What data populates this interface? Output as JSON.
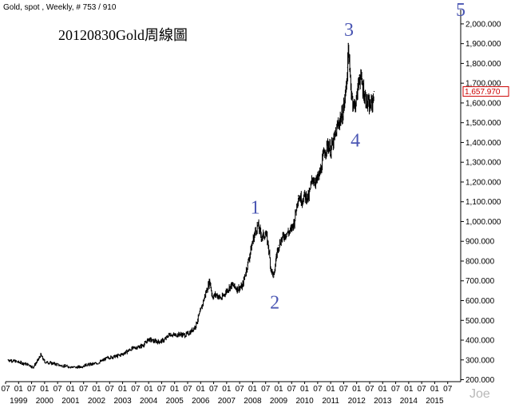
{
  "header": {
    "title": "Gold, spot , Weekly, # 753 / 910"
  },
  "annotation": {
    "title": "20120830Gold周線圖"
  },
  "signature": "Joe",
  "colors": {
    "price": "#000000",
    "wave_label": "#4a56b3",
    "last_price_box": "#cc0000",
    "background": "#ffffff"
  },
  "chart_data": {
    "type": "line",
    "title": "Gold, spot , Weekly, # 753 / 910",
    "xlabel": "",
    "ylabel": "",
    "grid": false,
    "legend": "none",
    "ylim": [
      190,
      2040
    ],
    "xlim": [
      1998.5,
      2016.0
    ],
    "y_ticks": [
      "200.000",
      "300.000",
      "400.000",
      "500.000",
      "600.000",
      "700.000",
      "800.000",
      "900.000",
      "1,000.000",
      "1,100.000",
      "1,200.000",
      "1,300.000",
      "1,400.000",
      "1,500.000",
      "1,600.000",
      "1,700.000",
      "1,800.000",
      "1,900.000",
      "2,000.000"
    ],
    "x_month_ticks": [
      {
        "x": 1998.5,
        "label": "07"
      },
      {
        "x": 1999.0,
        "label": "01"
      },
      {
        "x": 1999.5,
        "label": "07"
      },
      {
        "x": 2000.0,
        "label": "01"
      },
      {
        "x": 2000.5,
        "label": "07"
      },
      {
        "x": 2001.0,
        "label": "01"
      },
      {
        "x": 2001.5,
        "label": "07"
      },
      {
        "x": 2002.0,
        "label": "01"
      },
      {
        "x": 2002.5,
        "label": "07"
      },
      {
        "x": 2003.0,
        "label": "01"
      },
      {
        "x": 2003.5,
        "label": "07"
      },
      {
        "x": 2004.0,
        "label": "01"
      },
      {
        "x": 2004.5,
        "label": "07"
      },
      {
        "x": 2005.0,
        "label": "01"
      },
      {
        "x": 2005.5,
        "label": "07"
      },
      {
        "x": 2006.0,
        "label": "01"
      },
      {
        "x": 2006.5,
        "label": "07"
      },
      {
        "x": 2007.0,
        "label": "01"
      },
      {
        "x": 2007.5,
        "label": "07"
      },
      {
        "x": 2008.0,
        "label": "01"
      },
      {
        "x": 2008.5,
        "label": "07"
      },
      {
        "x": 2009.0,
        "label": "01"
      },
      {
        "x": 2009.5,
        "label": "07"
      },
      {
        "x": 2010.0,
        "label": "01"
      },
      {
        "x": 2010.5,
        "label": "07"
      },
      {
        "x": 2011.0,
        "label": "01"
      },
      {
        "x": 2011.5,
        "label": "07"
      },
      {
        "x": 2012.0,
        "label": "01"
      },
      {
        "x": 2012.5,
        "label": "07"
      },
      {
        "x": 2013.0,
        "label": "01"
      },
      {
        "x": 2013.5,
        "label": "07"
      },
      {
        "x": 2014.0,
        "label": "01"
      },
      {
        "x": 2014.5,
        "label": "07"
      },
      {
        "x": 2015.0,
        "label": "01"
      },
      {
        "x": 2015.5,
        "label": "07"
      }
    ],
    "x_year_labels": [
      {
        "x": 1999.0,
        "label": "1999"
      },
      {
        "x": 2000.0,
        "label": "2000"
      },
      {
        "x": 2001.0,
        "label": "2001"
      },
      {
        "x": 2002.0,
        "label": "2002"
      },
      {
        "x": 2003.0,
        "label": "2003"
      },
      {
        "x": 2004.0,
        "label": "2004"
      },
      {
        "x": 2005.0,
        "label": "2005"
      },
      {
        "x": 2006.0,
        "label": "2006"
      },
      {
        "x": 2007.0,
        "label": "2007"
      },
      {
        "x": 2008.0,
        "label": "2008"
      },
      {
        "x": 2009.0,
        "label": "2009"
      },
      {
        "x": 2010.0,
        "label": "2010"
      },
      {
        "x": 2011.0,
        "label": "2011"
      },
      {
        "x": 2012.0,
        "label": "2012"
      },
      {
        "x": 2013.0,
        "label": "2013"
      },
      {
        "x": 2014.0,
        "label": "2014"
      },
      {
        "x": 2015.0,
        "label": "2015"
      }
    ],
    "last_value": 1657.97,
    "last_value_label": "1,657.970",
    "series": [
      {
        "x": [
          1998.6,
          1998.8,
          1999.0,
          1999.2,
          1999.4,
          1999.55,
          1999.75,
          1999.85,
          2000.0,
          2000.2,
          2000.4,
          2000.6,
          2000.8,
          2001.0,
          2001.2,
          2001.4,
          2001.6,
          2001.8,
          2002.0,
          2002.2,
          2002.4,
          2002.6,
          2002.8,
          2003.0,
          2003.2,
          2003.4,
          2003.6,
          2003.8,
          2004.0,
          2004.2,
          2004.4,
          2004.6,
          2004.8,
          2005.0,
          2005.2,
          2005.4,
          2005.6,
          2005.8,
          2006.0,
          2006.2,
          2006.35,
          2006.45,
          2006.6,
          2006.8,
          2007.0,
          2007.2,
          2007.4,
          2007.6,
          2007.8,
          2008.0,
          2008.1,
          2008.2,
          2008.35,
          2008.5,
          2008.6,
          2008.7,
          2008.82,
          2008.9,
          2009.0,
          2009.15,
          2009.3,
          2009.45,
          2009.6,
          2009.75,
          2009.9,
          2010.0,
          2010.15,
          2010.3,
          2010.45,
          2010.6,
          2010.75,
          2010.9,
          2011.0,
          2011.15,
          2011.3,
          2011.45,
          2011.55,
          2011.65,
          2011.68,
          2011.72,
          2011.8,
          2011.9,
          2012.0,
          2012.1,
          2012.2,
          2012.3,
          2012.4,
          2012.5,
          2012.6,
          2012.67
        ],
        "values": [
          300,
          295,
          288,
          282,
          275,
          262,
          300,
          325,
          290,
          285,
          280,
          272,
          268,
          265,
          262,
          266,
          275,
          278,
          282,
          295,
          310,
          315,
          320,
          330,
          345,
          360,
          365,
          375,
          405,
          395,
          392,
          400,
          430,
          425,
          430,
          425,
          440,
          470,
          550,
          640,
          700,
          620,
          630,
          610,
          650,
          680,
          660,
          670,
          780,
          900,
          950,
          980,
          920,
          940,
          880,
          760,
          720,
          820,
          880,
          920,
          940,
          950,
          1000,
          1130,
          1110,
          1130,
          1120,
          1220,
          1200,
          1250,
          1350,
          1390,
          1360,
          1420,
          1500,
          1540,
          1620,
          1780,
          1900,
          1770,
          1650,
          1580,
          1620,
          1740,
          1700,
          1640,
          1600,
          1580,
          1600,
          1657.97
        ]
      }
    ]
  },
  "wave_labels": [
    {
      "label": "1",
      "x": 2008.1,
      "y": 1040
    },
    {
      "label": "2",
      "x": 2008.85,
      "y": 560
    },
    {
      "label": "3",
      "x": 2011.7,
      "y": 1940
    },
    {
      "label": "4",
      "x": 2011.95,
      "y": 1380
    },
    {
      "label": "5",
      "x": 2016.0,
      "y": 2040
    }
  ]
}
